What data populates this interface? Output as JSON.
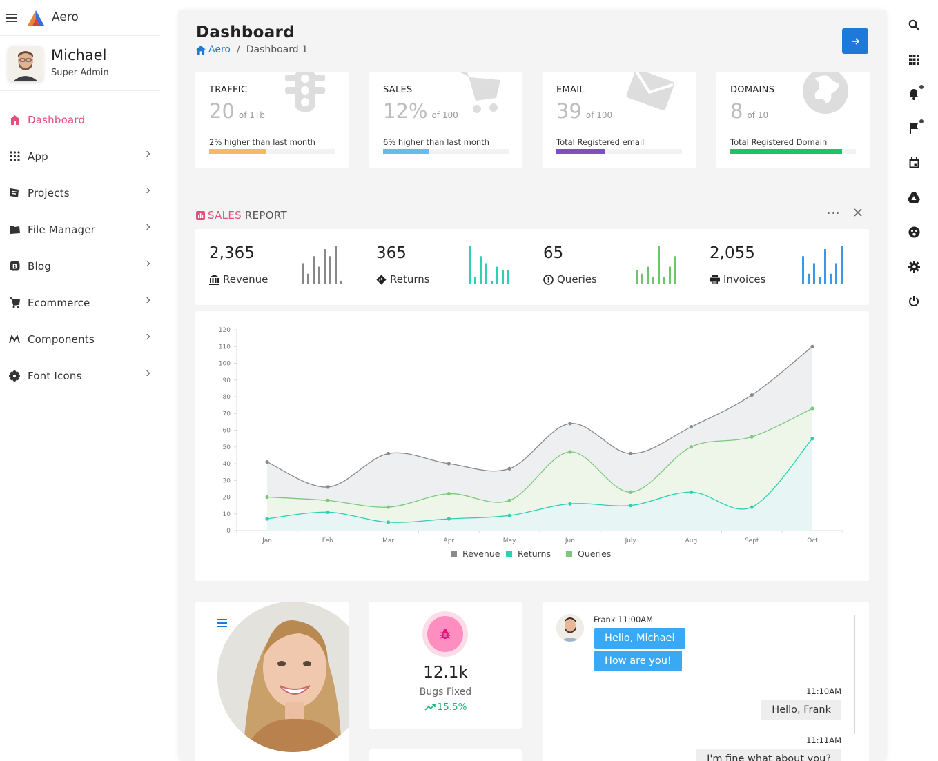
{
  "sidebar": {
    "brand": "Aero",
    "user": {
      "name": "Michael",
      "role": "Super Admin"
    },
    "items": [
      {
        "label": "Dashboard",
        "icon": "home-icon",
        "active": true
      },
      {
        "label": "App",
        "icon": "apps-grid-icon"
      },
      {
        "label": "Projects",
        "icon": "folder-icon"
      },
      {
        "label": "File Manager",
        "icon": "folder-open-icon"
      },
      {
        "label": "Blog",
        "icon": "blog-icon"
      },
      {
        "label": "Ecommerce",
        "icon": "cart-icon"
      },
      {
        "label": "Components",
        "icon": "swap-icon"
      },
      {
        "label": "Font Icons",
        "icon": "gear-flower-icon"
      }
    ]
  },
  "rightbar": {
    "icons": [
      "search-icon",
      "apps-grid-icon",
      "notification-bell-icon",
      "flag-icon",
      "calendar-icon",
      "drive-icon",
      "account-circle-icon",
      "settings-gear-icon",
      "power-icon"
    ]
  },
  "header": {
    "title": "Dashboard",
    "breadcrumb": {
      "home": "Aero",
      "sep": "/",
      "current": "Dashboard 1"
    }
  },
  "stats": [
    {
      "label": "TRAFFIC",
      "value": "20",
      "of": "of 1Tb",
      "note": "2% higher than last month",
      "progress": 0.45,
      "color": "#f5b95f",
      "icon": "traffic-light-icon"
    },
    {
      "label": "SALES",
      "value": "12%",
      "of": "of 100",
      "note": "6% higher than last month",
      "progress": 0.37,
      "color": "#5bc0f0",
      "icon": "cart-icon"
    },
    {
      "label": "EMAIL",
      "value": "39",
      "of": "of 100",
      "note": "Total Registered email",
      "progress": 0.39,
      "color": "#7e4ec4",
      "icon": "envelope-icon"
    },
    {
      "label": "DOMAINS",
      "value": "8",
      "of": "of 10",
      "note": "Total Registered Domain",
      "progress": 0.89,
      "color": "#1fc26a",
      "icon": "globe-icon"
    }
  ],
  "sales_report": {
    "title_accent": "SALES",
    "title_rest": "REPORT",
    "kpis": [
      {
        "value": "2,365",
        "label": "Revenue",
        "icon": "bank-icon",
        "color": "#888888",
        "bars": [
          6,
          3,
          8,
          5,
          10,
          8,
          11,
          1
        ]
      },
      {
        "value": "365",
        "label": "Returns",
        "icon": "diamond-arrow-icon",
        "color": "#2fcfb3",
        "bars": [
          11,
          2,
          8,
          6,
          1,
          5,
          4,
          4
        ]
      },
      {
        "value": "65",
        "label": "Queries",
        "icon": "alert-circle-icon",
        "color": "#6cc66c",
        "bars": [
          4,
          3,
          5,
          2,
          11,
          2,
          5,
          8
        ]
      },
      {
        "value": "2,055",
        "label": "Invoices",
        "icon": "printer-icon",
        "color": "#3a98e8",
        "bars": [
          8,
          3,
          6,
          2,
          10,
          3,
          6,
          11
        ]
      }
    ]
  },
  "chart_data": {
    "type": "area",
    "categories": [
      "Jan",
      "Feb",
      "Mar",
      "Apr",
      "May",
      "Jun",
      "July",
      "Aug",
      "Sept",
      "Oct"
    ],
    "series": [
      {
        "name": "Revenue",
        "color": "#8a8a8a",
        "fill": "#eeeff1",
        "values": [
          41,
          26,
          46,
          40,
          37,
          64,
          46,
          62,
          81,
          110
        ]
      },
      {
        "name": "Queries",
        "color": "#7cc97c",
        "fill": "#eef6ea",
        "values": [
          20,
          18,
          14,
          22,
          18,
          47,
          23,
          50,
          56,
          73
        ]
      },
      {
        "name": "Returns",
        "color": "#2fcfb3",
        "fill": "#e7f6f4",
        "values": [
          7,
          11,
          5,
          7,
          9,
          16,
          15,
          23,
          14,
          55
        ]
      }
    ],
    "legend": [
      "Revenue",
      "Returns",
      "Queries"
    ],
    "legend_colors": [
      "#8a8a8a",
      "#2fcfb3",
      "#7cc97c"
    ],
    "ylim": [
      0,
      120
    ],
    "yticks": [
      0,
      10,
      20,
      30,
      40,
      50,
      60,
      70,
      80,
      90,
      100,
      110,
      120
    ],
    "legend_position": "bottom",
    "grid": false
  },
  "bugs": {
    "value": "12.1k",
    "label": "Bugs Fixed",
    "trend": "15.5%"
  },
  "chat": {
    "incoming": {
      "name_time": "Frank 11:00AM",
      "messages": [
        "Hello, Michael",
        "How are you!"
      ]
    },
    "outgoing": [
      {
        "time": "11:10AM",
        "text": "Hello, Frank"
      },
      {
        "time": "11:11AM",
        "text": "I'm fine what about you?"
      }
    ]
  }
}
